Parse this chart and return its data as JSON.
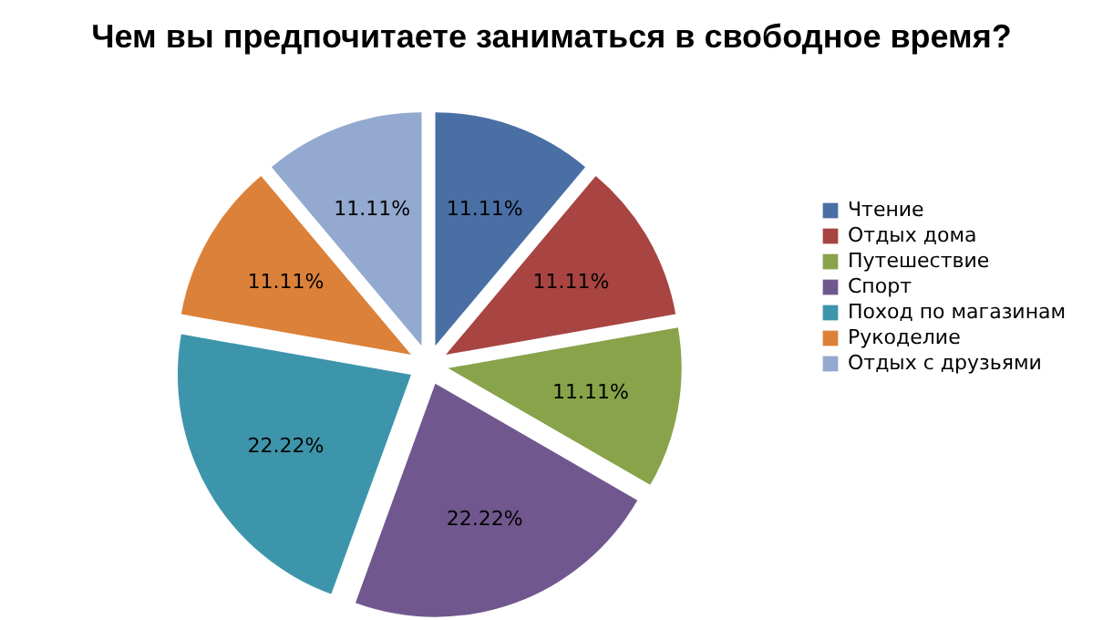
{
  "chart_data": {
    "type": "pie",
    "title": "Чем вы предпочитаете заниматься в свободное время?",
    "categories": [
      "Чтение",
      " Отдых дома",
      "Путешествие",
      "Спорт",
      "Поход по магазинам",
      "Рукоделие",
      "Отдых с друзьями"
    ],
    "values": [
      11.11,
      11.11,
      11.11,
      22.22,
      22.22,
      11.11,
      11.11
    ],
    "colors": [
      "#4a6fa5",
      "#a84441",
      "#88a34a",
      "#70588f",
      "#3d95ab",
      "#dc8139",
      "#93a9cf"
    ],
    "value_labels": [
      "11.11%",
      "11.11%",
      "11.11%",
      "22.22%",
      "22.22%",
      "11.11%",
      "11.11%"
    ],
    "legend": "right"
  }
}
